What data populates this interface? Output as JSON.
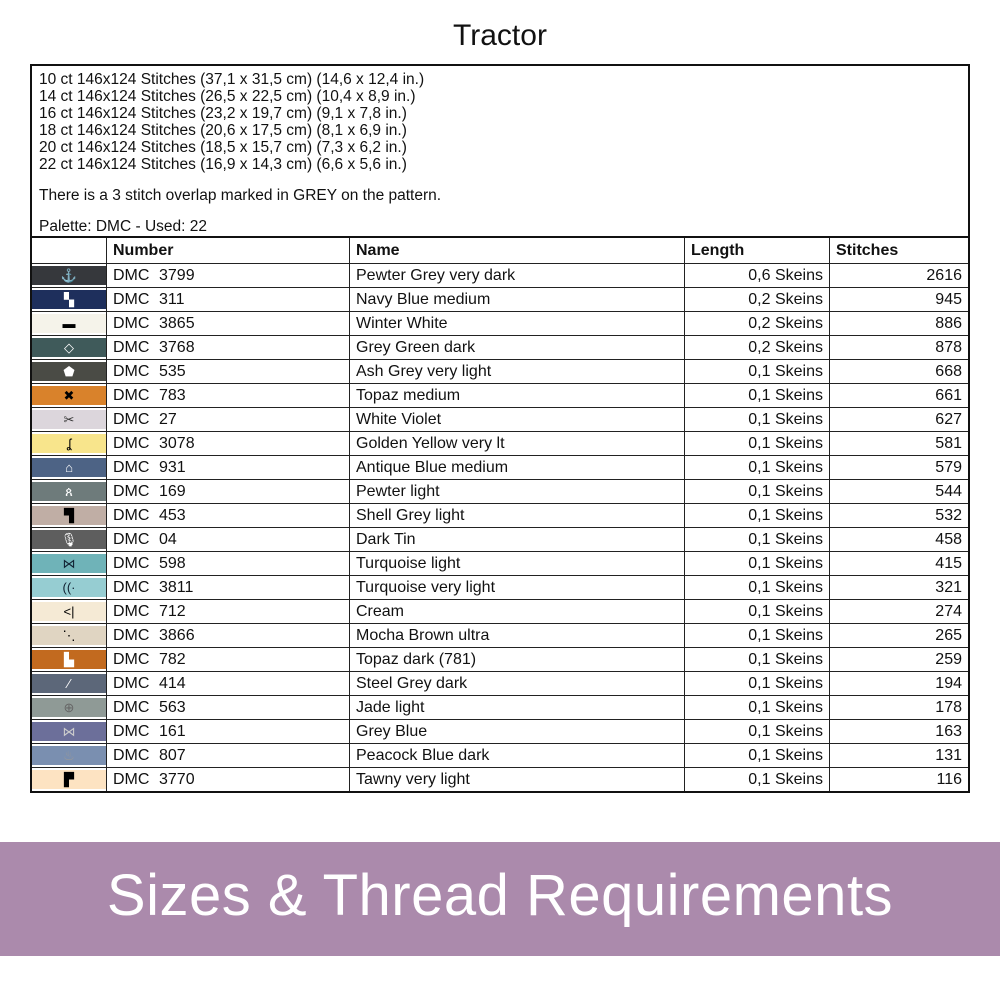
{
  "title": "Tractor",
  "info": {
    "sizes": [
      "10 ct 146x124 Stitches (37,1 x 31,5 cm) (14,6 x 12,4 in.)",
      "14 ct 146x124 Stitches (26,5 x 22,5 cm) (10,4 x 8,9 in.)",
      "16 ct 146x124 Stitches (23,2 x 19,7 cm) (9,1 x 7,8 in.)",
      "18 ct 146x124 Stitches (20,6 x 17,5 cm) (8,1 x 6,9 in.)",
      "20 ct 146x124 Stitches (18,5 x 15,7 cm) (7,3 x 6,2 in.)",
      "22 ct 146x124 Stitches (16,9 x 14,3 cm) (6,6 x 5,6 in.)"
    ],
    "overlap_note": "There is a 3 stitch overlap marked in GREY on the pattern.",
    "palette": "Palette: DMC - Used: 22"
  },
  "table": {
    "headers": [
      "",
      "Number",
      "Name",
      "Length",
      "Stitches"
    ],
    "rows": [
      {
        "color": "#36383c",
        "symbol": "⚓",
        "sym_color": "#fff",
        "brand": "DMC",
        "number": "3799",
        "name": "Pewter Grey very dark",
        "length": "0,6 Skeins",
        "stitches": "2616"
      },
      {
        "color": "#1e2f5c",
        "symbol": "▚",
        "sym_color": "#fff",
        "brand": "DMC",
        "number": "311",
        "name": "Navy Blue medium",
        "length": "0,2 Skeins",
        "stitches": "945"
      },
      {
        "color": "#f5f3ea",
        "symbol": "▬",
        "sym_color": "#000",
        "brand": "DMC",
        "number": "3865",
        "name": "Winter White",
        "length": "0,2 Skeins",
        "stitches": "886"
      },
      {
        "color": "#3f5a5a",
        "symbol": "◇",
        "sym_color": "#fff",
        "brand": "DMC",
        "number": "3768",
        "name": "Grey Green dark",
        "length": "0,2 Skeins",
        "stitches": "878"
      },
      {
        "color": "#4a4b45",
        "symbol": "⬟",
        "sym_color": "#fff",
        "brand": "DMC",
        "number": "535",
        "name": "Ash Grey very light",
        "length": "0,1 Skeins",
        "stitches": "668"
      },
      {
        "color": "#d9822b",
        "symbol": "✖",
        "sym_color": "#000",
        "brand": "DMC",
        "number": "783",
        "name": "Topaz medium",
        "length": "0,1 Skeins",
        "stitches": "661"
      },
      {
        "color": "#dcd6dc",
        "symbol": "✂",
        "sym_color": "#333",
        "brand": "DMC",
        "number": "27",
        "name": "White Violet",
        "length": "0,1 Skeins",
        "stitches": "627"
      },
      {
        "color": "#f8e58c",
        "symbol": "ʆ",
        "sym_color": "#000",
        "brand": "DMC",
        "number": "3078",
        "name": "Golden Yellow very lt",
        "length": "0,1 Skeins",
        "stitches": "581"
      },
      {
        "color": "#4d6385",
        "symbol": "⌂",
        "sym_color": "#fff",
        "brand": "DMC",
        "number": "931",
        "name": "Antique Blue medium",
        "length": "0,1 Skeins",
        "stitches": "579"
      },
      {
        "color": "#6e7b7b",
        "symbol": "ጰ",
        "sym_color": "#fff",
        "brand": "DMC",
        "number": "169",
        "name": "Pewter light",
        "length": "0,1 Skeins",
        "stitches": "544"
      },
      {
        "color": "#c0aea5",
        "symbol": "▜",
        "sym_color": "#000",
        "brand": "DMC",
        "number": "453",
        "name": "Shell Grey light",
        "length": "0,1 Skeins",
        "stitches": "532"
      },
      {
        "color": "#5e5e5e",
        "symbol": "🎙",
        "sym_color": "#fff",
        "brand": "DMC",
        "number": "04",
        "name": "Dark Tin",
        "length": "0,1 Skeins",
        "stitches": "458"
      },
      {
        "color": "#6fb3b8",
        "symbol": "⋈",
        "sym_color": "#123",
        "brand": "DMC",
        "number": "598",
        "name": "Turquoise light",
        "length": "0,1 Skeins",
        "stitches": "415"
      },
      {
        "color": "#96cdd2",
        "symbol": "((·",
        "sym_color": "#123",
        "brand": "DMC",
        "number": "3811",
        "name": "Turquoise very light",
        "length": "0,1 Skeins",
        "stitches": "321"
      },
      {
        "color": "#f5ead5",
        "symbol": "<|",
        "sym_color": "#000",
        "brand": "DMC",
        "number": "712",
        "name": "Cream",
        "length": "0,1 Skeins",
        "stitches": "274"
      },
      {
        "color": "#e0d5c2",
        "symbol": "⋱",
        "sym_color": "#000",
        "brand": "DMC",
        "number": "3866",
        "name": "Mocha Brown ultra",
        "length": "0,1 Skeins",
        "stitches": "265"
      },
      {
        "color": "#c26a1f",
        "symbol": "▙",
        "sym_color": "#fff",
        "brand": "DMC",
        "number": "782",
        "name": "Topaz dark (781)",
        "length": "0,1 Skeins",
        "stitches": "259"
      },
      {
        "color": "#5c6779",
        "symbol": "⁄",
        "sym_color": "#fff",
        "brand": "DMC",
        "number": "414",
        "name": "Steel Grey dark",
        "length": "0,1 Skeins",
        "stitches": "194"
      },
      {
        "color": "#8f9a96",
        "symbol": "⊕",
        "sym_color": "#666",
        "brand": "DMC",
        "number": "563",
        "name": "Jade light",
        "length": "0,1 Skeins",
        "stitches": "178"
      },
      {
        "color": "#6c6f9a",
        "symbol": "⋈",
        "sym_color": "#ccc",
        "brand": "DMC",
        "number": "161",
        "name": "Grey Blue",
        "length": "0,1 Skeins",
        "stitches": "163"
      },
      {
        "color": "#7a8fb0",
        "symbol": "♨",
        "sym_color": "#999",
        "brand": "DMC",
        "number": "807",
        "name": "Peacock Blue dark",
        "length": "0,1 Skeins",
        "stitches": "131"
      },
      {
        "color": "#fde3c2",
        "symbol": "▛",
        "sym_color": "#000",
        "brand": "DMC",
        "number": "3770",
        "name": "Tawny very light",
        "length": "0,1 Skeins",
        "stitches": "116"
      }
    ]
  },
  "banner": {
    "text": "Sizes & Thread Requirements",
    "color": "#9c769e"
  }
}
